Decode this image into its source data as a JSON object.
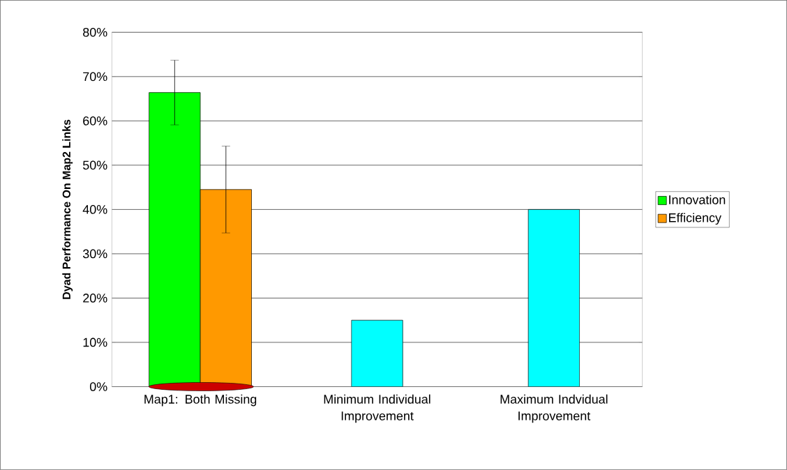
{
  "chart_data": {
    "type": "bar",
    "ylabel": "Dyad Performance On Map2 Links",
    "categories": [
      "Map1: Both Missing",
      "Minimum Individual Improvement",
      "Maximum Indvidual Improvement"
    ],
    "series": [
      {
        "name": "Innovation",
        "color": "#00ff00",
        "values": [
          66.4,
          null,
          null
        ],
        "errors": [
          7.3,
          null,
          null
        ]
      },
      {
        "name": "Efficiency",
        "color": "#ff9900",
        "values": [
          44.5,
          null,
          null
        ],
        "errors": [
          9.8,
          null,
          null
        ]
      },
      {
        "color": "#00ffff",
        "values": [
          null,
          15,
          40
        ]
      }
    ],
    "ylim": [
      0,
      80
    ],
    "yticks": [
      {
        "value": 0,
        "label": "0%"
      },
      {
        "value": 10,
        "label": "10%"
      },
      {
        "value": 20,
        "label": "20%"
      },
      {
        "value": 30,
        "label": "30%"
      },
      {
        "value": 40,
        "label": "40%"
      },
      {
        "value": 50,
        "label": "50%"
      },
      {
        "value": 60,
        "label": "60%"
      },
      {
        "value": 70,
        "label": "70%"
      },
      {
        "value": 80,
        "label": "80%"
      }
    ],
    "grid": "y",
    "legend": "right"
  }
}
